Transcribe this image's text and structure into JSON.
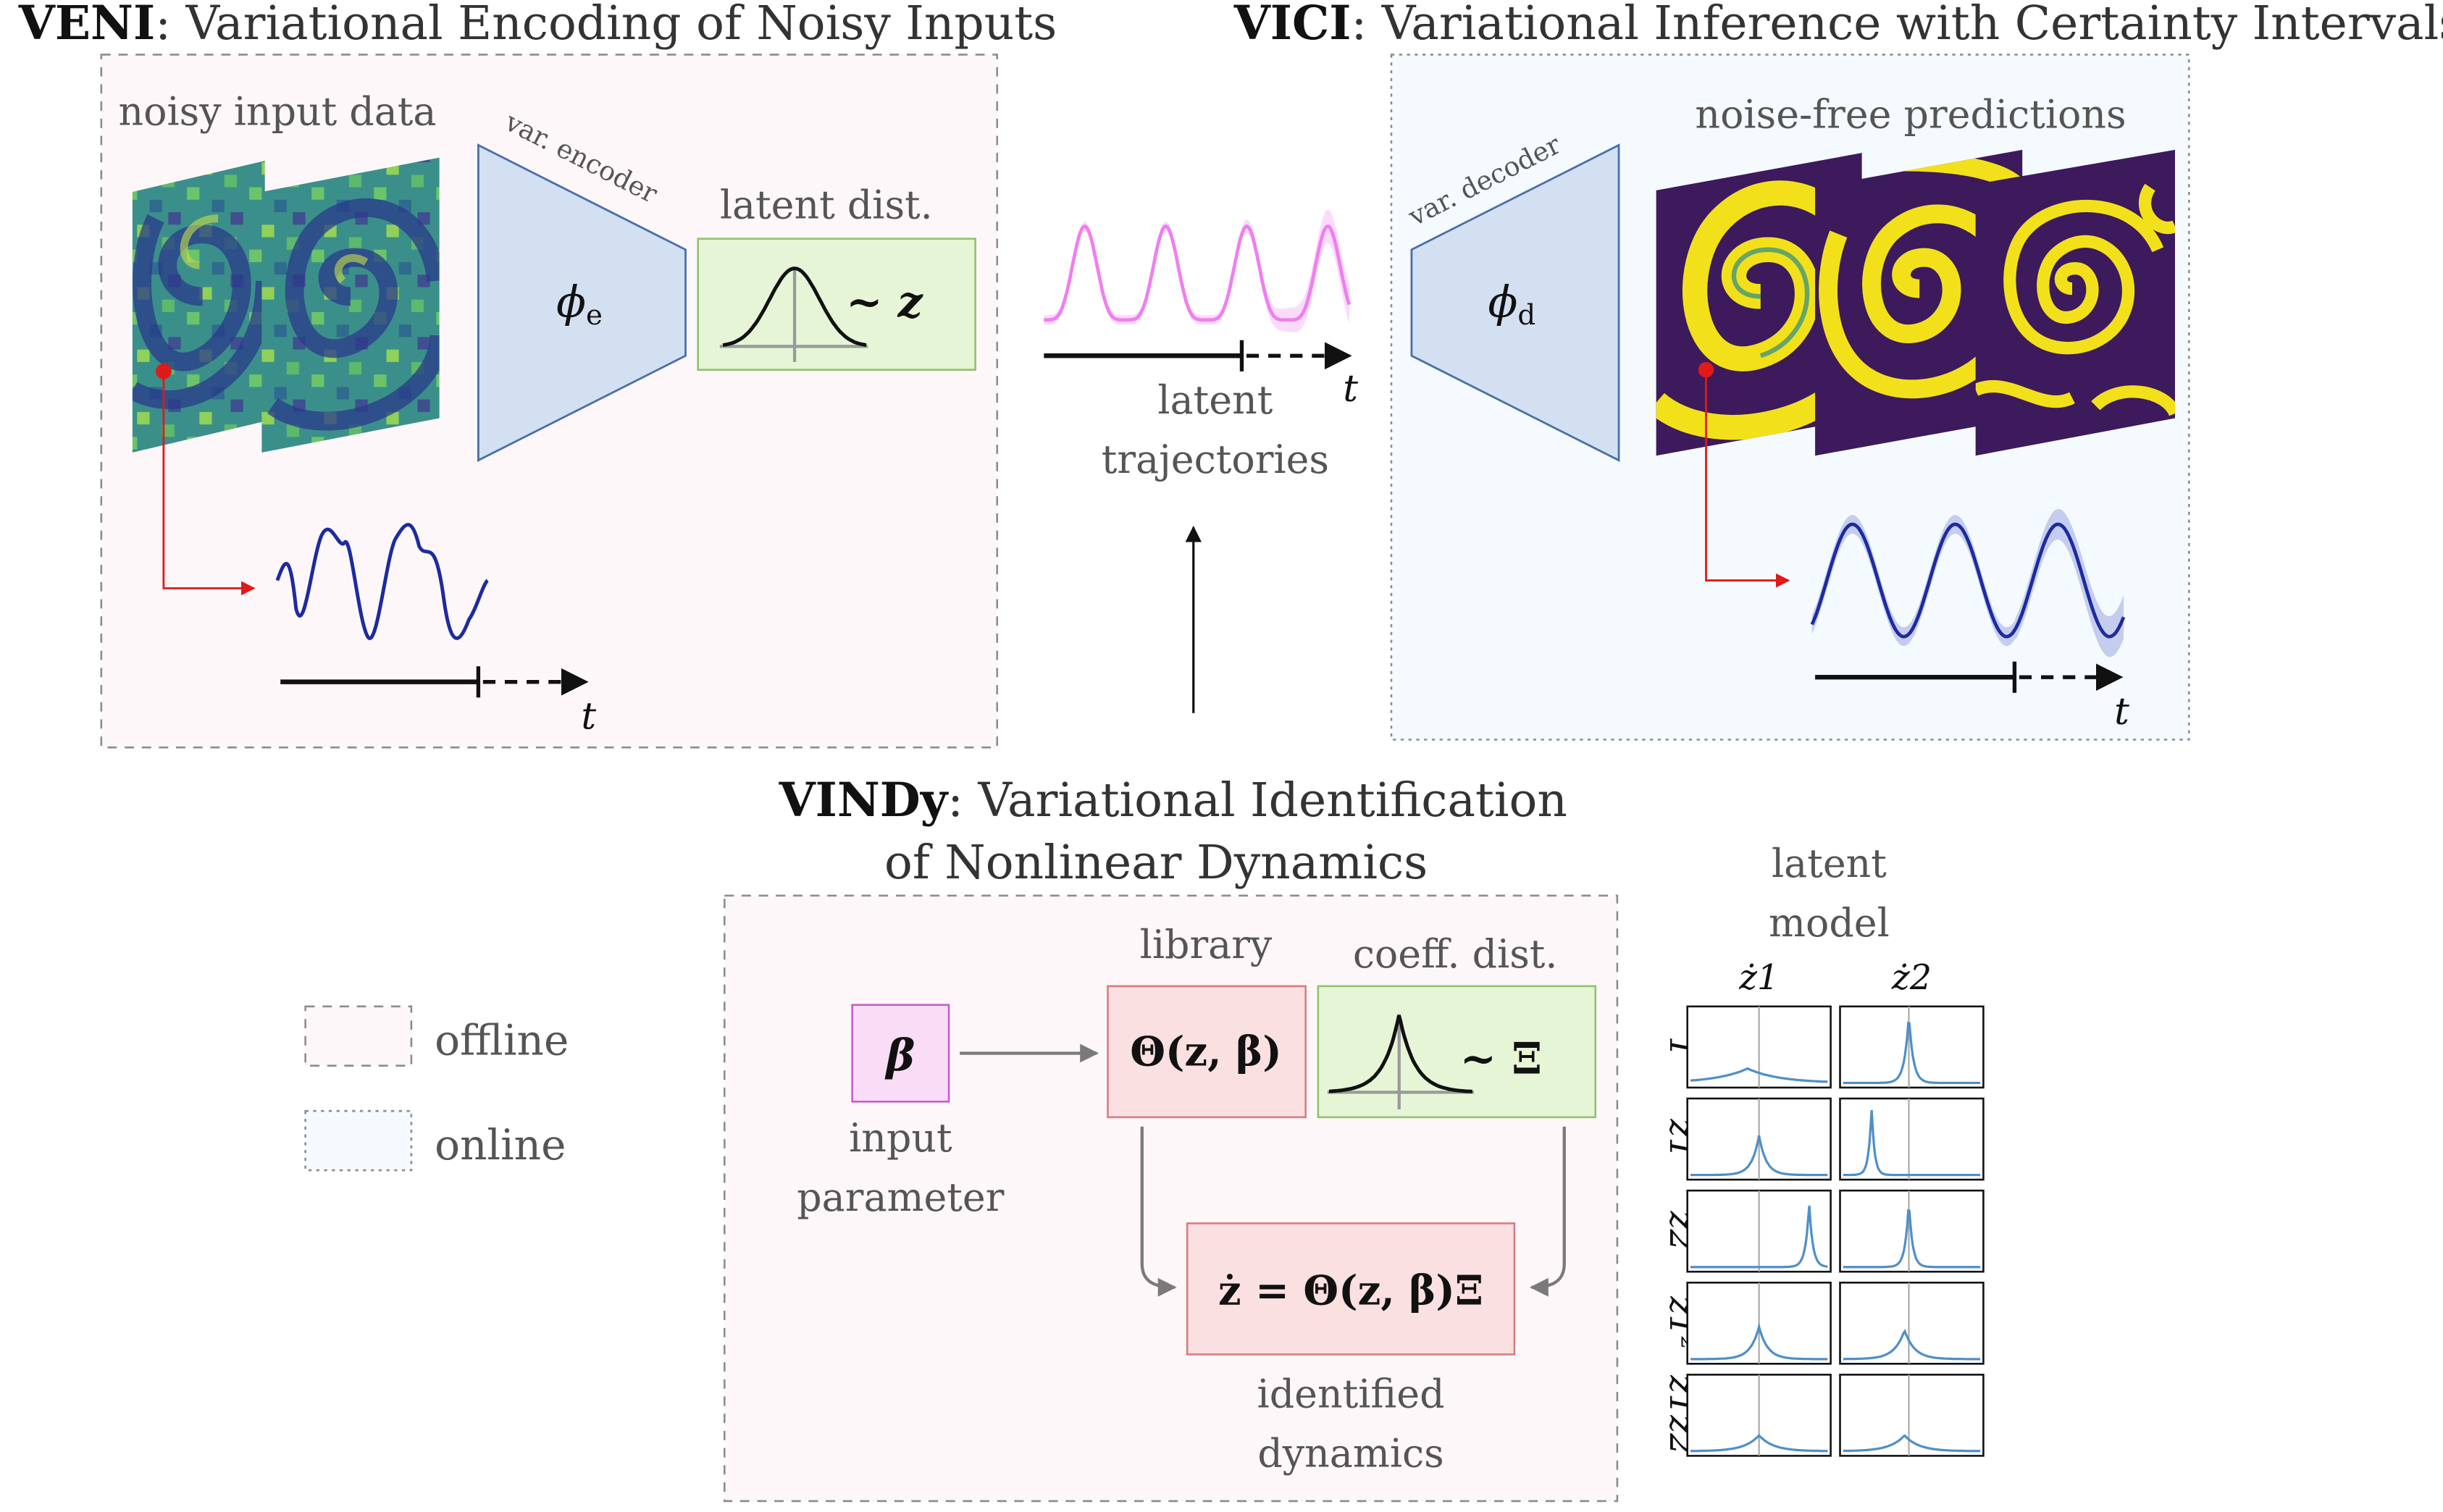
{
  "veni": {
    "title_bold": "VENI",
    "title_rest": ": Variational Encoding of Noisy Inputs",
    "input_label": "noisy input data",
    "encoder_label": "var. encoder",
    "encoder_symbol": "ϕ",
    "encoder_subscript": "e",
    "latent_dist_label": "latent dist.",
    "latent_dist_symbol": "~ z",
    "time_symbol": "t"
  },
  "vici": {
    "title_bold": "VICI",
    "title_rest": ": Variational Inference with Certainty Intervals",
    "predictions_label": "noise-free predictions",
    "decoder_label": "var. decoder",
    "decoder_symbol": "ϕ",
    "decoder_subscript": "d",
    "time_symbol": "t"
  },
  "latent_trajectories": {
    "label_line1": "latent",
    "label_line2": "trajectories",
    "time_symbol": "t"
  },
  "vindy": {
    "title_bold": "VINDy",
    "title_rest": ": Variational Identification",
    "title_line2": "of Nonlinear Dynamics",
    "beta_symbol": "β",
    "input_label_line1": "input",
    "input_label_line2": "parameter",
    "library_label": "library",
    "library_expr": "Θ(z, β)",
    "coeff_label": "coeff. dist.",
    "coeff_symbol": "~ Ξ",
    "dynamics_expr": "ż = Θ(z, β)Ξ",
    "dynamics_label_line1": "identified",
    "dynamics_label_line2": "dynamics"
  },
  "legend": {
    "offline": "offline",
    "online": "online"
  },
  "latent_model": {
    "title_line1": "latent",
    "title_line2": "model",
    "columns": [
      "ż1",
      "ż2"
    ],
    "rows": [
      "1",
      "z1",
      "z2",
      "z1²",
      "z1z2"
    ],
    "peaks": [
      [
        {
          "pos": 0.42,
          "height": 0.2,
          "width": 0.22
        },
        {
          "pos": 0.48,
          "height": 0.95,
          "width": 0.03
        }
      ],
      [
        {
          "pos": 0.5,
          "height": 0.55,
          "width": 0.05
        },
        {
          "pos": 0.22,
          "height": 0.95,
          "width": 0.02
        }
      ],
      [
        {
          "pos": 0.85,
          "height": 0.88,
          "width": 0.025
        },
        {
          "pos": 0.48,
          "height": 0.92,
          "width": 0.025
        }
      ],
      [
        {
          "pos": 0.5,
          "height": 0.45,
          "width": 0.06
        },
        {
          "pos": 0.45,
          "height": 0.4,
          "width": 0.07
        }
      ],
      [
        {
          "pos": 0.5,
          "height": 0.22,
          "width": 0.1
        },
        {
          "pos": 0.45,
          "height": 0.22,
          "width": 0.1
        }
      ]
    ]
  },
  "colors": {
    "offline_bg": "#fdf7f9",
    "online_bg": "#f5fafe",
    "trapezoid": "#d3e0f2",
    "green_box": "#e6f5d6",
    "red_box": "#fbe0e2",
    "pink_box": "#f9dcf6",
    "pink_curve": "#f07ef0",
    "blue_curve": "#1d2ba0",
    "dist_blue": "#4f8fc8"
  }
}
